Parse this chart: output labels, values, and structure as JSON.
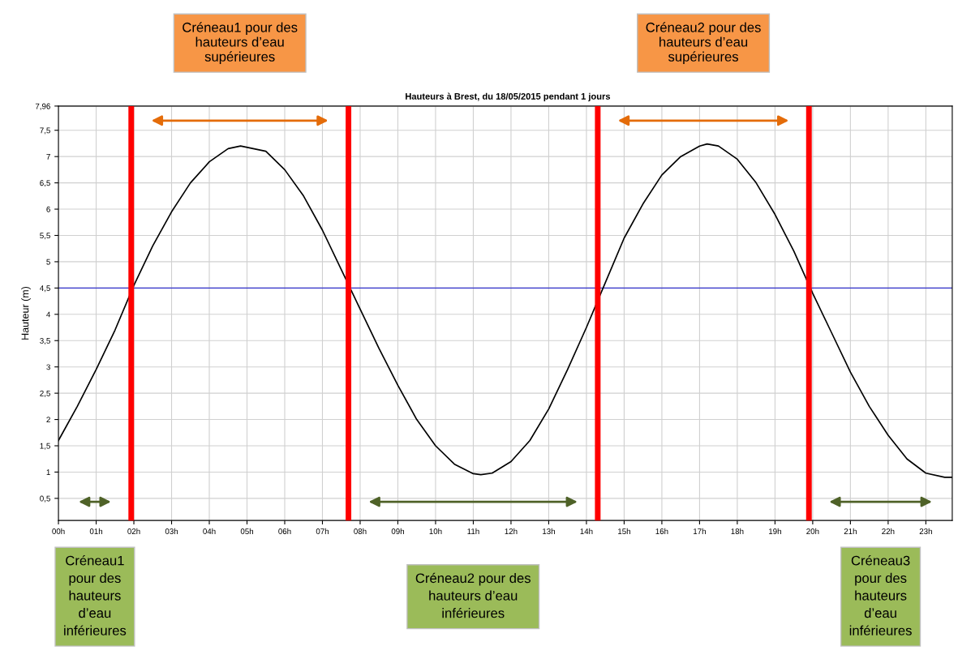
{
  "chart_data": {
    "type": "line",
    "title": "Hauteurs à Brest, du 18/05/2015 pendant 1 jours",
    "ylabel": "Hauteur (m)",
    "x": [
      0,
      0.5,
      1,
      1.5,
      2,
      2.5,
      3,
      3.5,
      4,
      4.5,
      4.83,
      5.5,
      6,
      6.5,
      7,
      7.5,
      8,
      8.5,
      9,
      9.5,
      10,
      10.5,
      11,
      11.2,
      11.5,
      12,
      12.5,
      13,
      13.5,
      14,
      14.5,
      15,
      15.5,
      16,
      16.5,
      17,
      17.2,
      17.5,
      18,
      18.5,
      19,
      19.5,
      20,
      20.5,
      21,
      21.5,
      22,
      22.5,
      23,
      23.5,
      23.7
    ],
    "series": [
      {
        "color": "#000000",
        "values": [
          1.6,
          2.25,
          2.95,
          3.7,
          4.55,
          5.3,
          5.95,
          6.5,
          6.9,
          7.15,
          7.2,
          7.1,
          6.75,
          6.25,
          5.6,
          4.85,
          4.1,
          3.35,
          2.65,
          2.0,
          1.5,
          1.15,
          0.97,
          0.95,
          0.98,
          1.2,
          1.6,
          2.2,
          2.95,
          3.75,
          4.6,
          5.45,
          6.1,
          6.65,
          7.0,
          7.2,
          7.24,
          7.2,
          6.95,
          6.5,
          5.9,
          5.2,
          4.4,
          3.65,
          2.9,
          2.25,
          1.7,
          1.25,
          0.98,
          0.9,
          0.9
        ]
      }
    ],
    "xlim": [
      0,
      23.7
    ],
    "xticks": [
      {
        "value": 0,
        "label": "00h"
      },
      {
        "value": 1,
        "label": "01h"
      },
      {
        "value": 2,
        "label": "02h"
      },
      {
        "value": 3,
        "label": "03h"
      },
      {
        "value": 4,
        "label": "04h"
      },
      {
        "value": 5,
        "label": "05h"
      },
      {
        "value": 6,
        "label": "06h"
      },
      {
        "value": 7,
        "label": "07h"
      },
      {
        "value": 8,
        "label": "08h"
      },
      {
        "value": 9,
        "label": "09h"
      },
      {
        "value": 10,
        "label": "10h"
      },
      {
        "value": 11,
        "label": "11h"
      },
      {
        "value": 12,
        "label": "12h"
      },
      {
        "value": 13,
        "label": "13h"
      },
      {
        "value": 14,
        "label": "14h"
      },
      {
        "value": 15,
        "label": "15h"
      },
      {
        "value": 16,
        "label": "16h"
      },
      {
        "value": 17,
        "label": "17h"
      },
      {
        "value": 18,
        "label": "18h"
      },
      {
        "value": 19,
        "label": "19h"
      },
      {
        "value": 20,
        "label": "20h"
      },
      {
        "value": 21,
        "label": "21h"
      },
      {
        "value": 22,
        "label": "22h"
      },
      {
        "value": 23,
        "label": "23h"
      }
    ],
    "ylim": [
      0.08,
      7.96
    ],
    "yticks": [
      {
        "value": 0.5,
        "label": "0,5"
      },
      1,
      {
        "value": 1.5,
        "label": "1,5"
      },
      2,
      {
        "value": 2.5,
        "label": "2,5"
      },
      3,
      {
        "value": 3.5,
        "label": "3,5"
      },
      4,
      {
        "value": 4.5,
        "label": "4,5"
      },
      5,
      {
        "value": 5.5,
        "label": "5,5"
      },
      6,
      {
        "value": 6.5,
        "label": "6,5"
      },
      7,
      {
        "value": 7.5,
        "label": "7,5"
      },
      {
        "value": 7.96,
        "label": "7,96"
      }
    ],
    "grid": true,
    "marker": "none",
    "line_style": "solid",
    "ref_lines": [
      {
        "axis": "y",
        "value": 4.5,
        "color": "#3333cc"
      },
      {
        "axis": "x",
        "value": 1.93,
        "color": "#ff0000"
      },
      {
        "axis": "x",
        "value": 7.69,
        "color": "#ff0000"
      },
      {
        "axis": "x",
        "value": 14.3,
        "color": "#ff0000"
      },
      {
        "axis": "x",
        "value": 19.9,
        "color": "#ff0000"
      }
    ],
    "annotations": [
      "Créneau1 pour des\nhauteurs d’eau\nsupérieures",
      "Créneau2 pour des\nhauteurs d’eau\nsupérieures",
      "Créneau1\npour des\nhauteurs\nd’eau\ninférieures",
      "Créneau2 pour des\nhauteurs d’eau\ninférieures",
      "Créneau3\npour des\nhauteurs\nd’eau\ninférieures"
    ]
  }
}
